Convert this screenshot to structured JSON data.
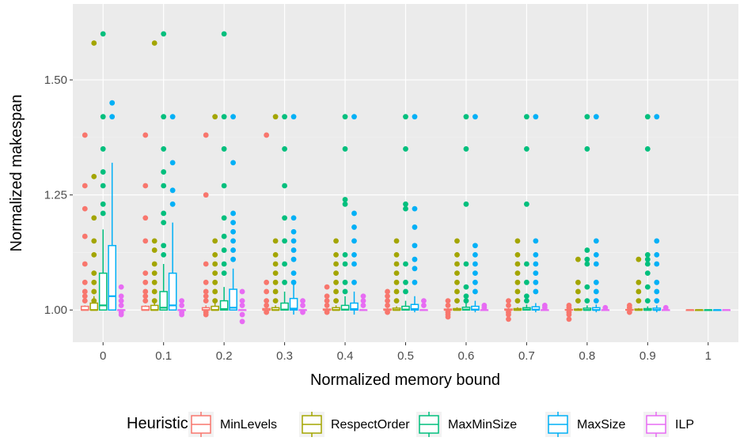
{
  "chart_data": {
    "type": "boxplot",
    "xlabel": "Normalized memory bound",
    "ylabel": "Normalized makespan",
    "categories": [
      "0",
      "0.1",
      "0.2",
      "0.3",
      "0.4",
      "0.5",
      "0.6",
      "0.7",
      "0.8",
      "0.9",
      "1"
    ],
    "y_ticks": [
      {
        "value": 1.0,
        "label": "1.00"
      },
      {
        "value": 1.25,
        "label": "1.25"
      },
      {
        "value": 1.5,
        "label": "1.50"
      }
    ],
    "ylim": [
      0.93,
      1.665
    ],
    "grid": true,
    "legend": {
      "title": "Heuristic",
      "position": "bottom",
      "entries": [
        "MinLevels",
        "RespectOrder",
        "MaxMinSize",
        "MaxSize",
        "ILP"
      ]
    },
    "series": [
      {
        "name": "MinLevels",
        "color": "#F8766D",
        "boxes": [
          {
            "q1": 1.0,
            "median": 1.0,
            "q3": 1.008,
            "lo": 1.0,
            "hi": 1.01
          },
          {
            "q1": 1.0,
            "median": 1.0,
            "q3": 1.008,
            "lo": 1.0,
            "hi": 1.01
          },
          {
            "q1": 1.0,
            "median": 1.0,
            "q3": 1.005,
            "lo": 1.0,
            "hi": 1.01
          },
          {
            "q1": 1.0,
            "median": 1.0,
            "q3": 1.003,
            "lo": 1.0,
            "hi": 1.005
          },
          {
            "q1": 1.0,
            "median": 1.0,
            "q3": 1.002,
            "lo": 1.0,
            "hi": 1.004
          },
          {
            "q1": 1.0,
            "median": 1.0,
            "q3": 1.002,
            "lo": 1.0,
            "hi": 1.004
          },
          {
            "q1": 1.0,
            "median": 1.0,
            "q3": 1.002,
            "lo": 1.0,
            "hi": 1.004
          },
          {
            "q1": 1.0,
            "median": 1.0,
            "q3": 1.002,
            "lo": 1.0,
            "hi": 1.004
          },
          {
            "q1": 1.0,
            "median": 1.0,
            "q3": 1.001,
            "lo": 1.0,
            "hi": 1.002
          },
          {
            "q1": 1.0,
            "median": 1.0,
            "q3": 1.001,
            "lo": 1.0,
            "hi": 1.002
          },
          {
            "q1": 1.0,
            "median": 1.0,
            "q3": 1.0,
            "lo": 1.0,
            "hi": 1.0
          }
        ],
        "outliers": [
          [
            1.38,
            1.27,
            1.22,
            1.16,
            1.1,
            1.06,
            1.04,
            1.03,
            1.02
          ],
          [
            1.38,
            1.27,
            1.2,
            1.15,
            1.08,
            1.06,
            1.04,
            1.03,
            1.02
          ],
          [
            1.38,
            1.25,
            1.1,
            1.06,
            1.04,
            1.03,
            1.02,
            0.995,
            0.99
          ],
          [
            1.38,
            1.06,
            1.04,
            1.02,
            1.01,
            0.995
          ],
          [
            1.05,
            1.03,
            1.02,
            1.01,
            0.995
          ],
          [
            1.04,
            1.03,
            1.02,
            1.01,
            0.995
          ],
          [
            1.02,
            1.01,
            0.995,
            0.99,
            0.985
          ],
          [
            1.02,
            1.01,
            0.995,
            0.99,
            0.98
          ],
          [
            1.01,
            1.005,
            0.995,
            0.99,
            0.98
          ],
          [
            1.01,
            1.005,
            0.995
          ],
          []
        ]
      },
      {
        "name": "RespectOrder",
        "color": "#A3A500",
        "boxes": [
          {
            "q1": 1.0,
            "median": 1.0,
            "q3": 1.015,
            "lo": 1.0,
            "hi": 1.03
          },
          {
            "q1": 1.0,
            "median": 1.0,
            "q3": 1.01,
            "lo": 1.0,
            "hi": 1.02
          },
          {
            "q1": 1.0,
            "median": 1.0,
            "q3": 1.008,
            "lo": 1.0,
            "hi": 1.015
          },
          {
            "q1": 1.0,
            "median": 1.0,
            "q3": 1.005,
            "lo": 1.0,
            "hi": 1.01
          },
          {
            "q1": 1.0,
            "median": 1.0,
            "q3": 1.005,
            "lo": 1.0,
            "hi": 1.01
          },
          {
            "q1": 1.0,
            "median": 1.0,
            "q3": 1.004,
            "lo": 1.0,
            "hi": 1.008
          },
          {
            "q1": 1.0,
            "median": 1.0,
            "q3": 1.003,
            "lo": 1.0,
            "hi": 1.006
          },
          {
            "q1": 1.0,
            "median": 1.0,
            "q3": 1.003,
            "lo": 1.0,
            "hi": 1.006
          },
          {
            "q1": 1.0,
            "median": 1.0,
            "q3": 1.002,
            "lo": 1.0,
            "hi": 1.004
          },
          {
            "q1": 1.0,
            "median": 1.0,
            "q3": 1.002,
            "lo": 1.0,
            "hi": 1.004
          },
          {
            "q1": 1.0,
            "median": 1.0,
            "q3": 1.0,
            "lo": 1.0,
            "hi": 1.0
          }
        ],
        "outliers": [
          [
            1.58,
            1.29,
            1.2,
            1.15,
            1.12,
            1.08,
            1.06,
            1.04,
            1.02
          ],
          [
            1.58,
            1.15,
            1.13,
            1.1,
            1.08,
            1.06,
            1.04,
            1.02
          ],
          [
            1.42,
            1.15,
            1.12,
            1.1,
            1.08,
            1.06,
            1.04,
            1.02
          ],
          [
            1.42,
            1.15,
            1.12,
            1.1,
            1.08,
            1.06,
            1.04,
            1.02
          ],
          [
            1.15,
            1.12,
            1.1,
            1.08,
            1.06,
            1.04,
            1.02
          ],
          [
            1.15,
            1.12,
            1.1,
            1.08,
            1.06,
            1.04,
            1.02
          ],
          [
            1.15,
            1.12,
            1.1,
            1.08,
            1.06,
            1.04,
            1.02
          ],
          [
            1.15,
            1.12,
            1.1,
            1.08,
            1.06,
            1.04,
            1.02
          ],
          [
            1.11,
            1.06,
            1.04,
            1.02
          ],
          [
            1.11,
            1.06,
            1.04,
            1.02
          ],
          []
        ]
      },
      {
        "name": "MaxMinSize",
        "color": "#00BF7D",
        "boxes": [
          {
            "q1": 1.0,
            "median": 1.01,
            "q3": 1.08,
            "lo": 1.0,
            "hi": 1.175
          },
          {
            "q1": 1.0,
            "median": 1.005,
            "q3": 1.04,
            "lo": 1.0,
            "hi": 1.1
          },
          {
            "q1": 1.0,
            "median": 1.002,
            "q3": 1.02,
            "lo": 1.0,
            "hi": 1.05
          },
          {
            "q1": 1.0,
            "median": 1.001,
            "q3": 1.015,
            "lo": 1.0,
            "hi": 1.04
          },
          {
            "q1": 1.0,
            "median": 1.001,
            "q3": 1.01,
            "lo": 1.0,
            "hi": 1.03
          },
          {
            "q1": 1.0,
            "median": 1.001,
            "q3": 1.008,
            "lo": 1.0,
            "hi": 1.02
          },
          {
            "q1": 1.0,
            "median": 1.001,
            "q3": 1.006,
            "lo": 1.0,
            "hi": 1.015
          },
          {
            "q1": 1.0,
            "median": 1.001,
            "q3": 1.005,
            "lo": 1.0,
            "hi": 1.012
          },
          {
            "q1": 1.0,
            "median": 1.0,
            "q3": 1.004,
            "lo": 1.0,
            "hi": 1.01
          },
          {
            "q1": 1.0,
            "median": 1.0,
            "q3": 1.003,
            "lo": 1.0,
            "hi": 1.008
          },
          {
            "q1": 1.0,
            "median": 1.0,
            "q3": 1.0,
            "lo": 1.0,
            "hi": 1.0
          }
        ],
        "outliers": [
          [
            1.6,
            1.42,
            1.35,
            1.3,
            1.27,
            1.23,
            1.21
          ],
          [
            1.6,
            1.42,
            1.35,
            1.3,
            1.27,
            1.21,
            1.19,
            1.14,
            1.12
          ],
          [
            1.6,
            1.42,
            1.35,
            1.27,
            1.2,
            1.16,
            1.13,
            1.1,
            1.08
          ],
          [
            1.42,
            1.35,
            1.27,
            1.2,
            1.15,
            1.1,
            1.06
          ],
          [
            1.42,
            1.35,
            1.24,
            1.23,
            1.12,
            1.1,
            1.06,
            1.04
          ],
          [
            1.42,
            1.35,
            1.23,
            1.22,
            1.1,
            1.06,
            1.04
          ],
          [
            1.42,
            1.35,
            1.23,
            1.1,
            1.05,
            1.03,
            1.02
          ],
          [
            1.42,
            1.35,
            1.23,
            1.1,
            1.06,
            1.03,
            1.02
          ],
          [
            1.42,
            1.35,
            1.13,
            1.11,
            1.1,
            1.05,
            1.02
          ],
          [
            1.42,
            1.35,
            1.12,
            1.11,
            1.1,
            1.08,
            1.05,
            1.02
          ],
          []
        ]
      },
      {
        "name": "MaxSize",
        "color": "#00B0F6",
        "boxes": [
          {
            "q1": 1.0,
            "median": 1.03,
            "q3": 1.14,
            "lo": 1.0,
            "hi": 1.32
          },
          {
            "q1": 1.0,
            "median": 1.01,
            "q3": 1.08,
            "lo": 1.0,
            "hi": 1.19
          },
          {
            "q1": 1.0,
            "median": 1.005,
            "q3": 1.045,
            "lo": 1.0,
            "hi": 1.09
          },
          {
            "q1": 1.0,
            "median": 1.003,
            "q3": 1.025,
            "lo": 0.99,
            "hi": 1.06
          },
          {
            "q1": 1.0,
            "median": 1.002,
            "q3": 1.015,
            "lo": 0.99,
            "hi": 1.04
          },
          {
            "q1": 1.0,
            "median": 1.002,
            "q3": 1.012,
            "lo": 0.995,
            "hi": 1.03
          },
          {
            "q1": 1.0,
            "median": 1.001,
            "q3": 1.008,
            "lo": 0.995,
            "hi": 1.02
          },
          {
            "q1": 1.0,
            "median": 1.001,
            "q3": 1.007,
            "lo": 0.995,
            "hi": 1.015
          },
          {
            "q1": 1.0,
            "median": 1.0,
            "q3": 1.005,
            "lo": 0.995,
            "hi": 1.012
          },
          {
            "q1": 1.0,
            "median": 1.0,
            "q3": 1.004,
            "lo": 0.995,
            "hi": 1.01
          },
          {
            "q1": 1.0,
            "median": 1.0,
            "q3": 1.0,
            "lo": 1.0,
            "hi": 1.0
          }
        ],
        "outliers": [
          [
            1.45,
            1.42
          ],
          [
            1.42,
            1.32,
            1.26,
            1.23
          ],
          [
            1.42,
            1.32,
            1.21,
            1.19,
            1.17,
            1.15,
            1.13,
            1.11
          ],
          [
            1.42,
            1.2,
            1.17,
            1.15,
            1.13,
            1.11,
            1.08,
            1.06
          ],
          [
            1.42,
            1.21,
            1.18,
            1.15,
            1.12,
            1.1,
            1.06
          ],
          [
            1.42,
            1.22,
            1.18,
            1.14,
            1.11,
            1.09,
            1.06
          ],
          [
            1.42,
            1.14,
            1.12,
            1.1,
            1.08,
            1.06,
            1.04
          ],
          [
            1.42,
            1.15,
            1.12,
            1.1,
            1.08,
            1.06,
            1.04
          ],
          [
            1.42,
            1.15,
            1.12,
            1.1,
            1.06,
            1.04,
            1.02
          ],
          [
            1.42,
            1.15,
            1.12,
            1.1,
            1.06,
            1.04,
            1.02
          ],
          []
        ]
      },
      {
        "name": "ILP",
        "color": "#E76BF3",
        "boxes": [
          {
            "q1": 1.0,
            "median": 1.0,
            "q3": 1.0,
            "lo": 1.0,
            "hi": 1.0
          },
          {
            "q1": 1.0,
            "median": 1.0,
            "q3": 1.0,
            "lo": 1.0,
            "hi": 1.0
          },
          {
            "q1": 1.0,
            "median": 1.0,
            "q3": 1.0,
            "lo": 1.0,
            "hi": 1.0
          },
          {
            "q1": 1.0,
            "median": 1.0,
            "q3": 1.0,
            "lo": 1.0,
            "hi": 1.0
          },
          {
            "q1": 1.0,
            "median": 1.0,
            "q3": 1.0,
            "lo": 1.0,
            "hi": 1.0
          },
          {
            "q1": 1.0,
            "median": 1.0,
            "q3": 1.0,
            "lo": 1.0,
            "hi": 1.0
          },
          {
            "q1": 1.0,
            "median": 1.0,
            "q3": 1.0,
            "lo": 1.0,
            "hi": 1.0
          },
          {
            "q1": 1.0,
            "median": 1.0,
            "q3": 1.0,
            "lo": 1.0,
            "hi": 1.0
          },
          {
            "q1": 1.0,
            "median": 1.0,
            "q3": 1.0,
            "lo": 1.0,
            "hi": 1.0
          },
          {
            "q1": 1.0,
            "median": 1.0,
            "q3": 1.0,
            "lo": 1.0,
            "hi": 1.0
          },
          {
            "q1": 1.0,
            "median": 1.0,
            "q3": 1.0,
            "lo": 1.0,
            "hi": 1.0
          }
        ],
        "outliers": [
          [
            1.05,
            1.03,
            1.02,
            1.01,
            0.995,
            0.99
          ],
          [
            1.02,
            1.01,
            0.995,
            0.99
          ],
          [
            1.04,
            1.02,
            1.01,
            0.99,
            0.975
          ],
          [
            1.02,
            1.01,
            0.995
          ],
          [
            1.03,
            1.02,
            1.01
          ],
          [
            1.02,
            1.01
          ],
          [
            1.01,
            1.005
          ],
          [
            1.01,
            1.005
          ],
          [
            1.005
          ],
          [
            1.005
          ],
          []
        ]
      }
    ]
  }
}
